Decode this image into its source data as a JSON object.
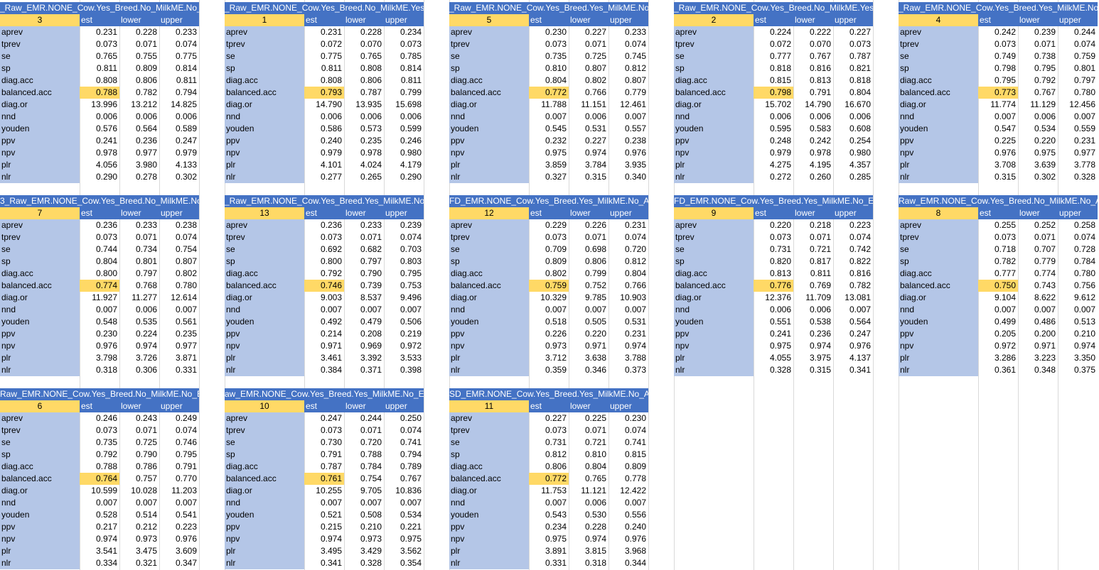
{
  "columns": [
    "est",
    "lower",
    "upper"
  ],
  "row_labels": [
    "aprev",
    "tprev",
    "se",
    "sp",
    "diag.acc",
    "balanced.acc",
    "diag.or",
    "nnd",
    "youden",
    "ppv",
    "npv",
    "plr",
    "nlr"
  ],
  "blocks": [
    {
      "title": "_Raw_EMR.NONE_Cow.Yes_Breed.No_MilkME.No_All",
      "num": "3",
      "rows": [
        [
          "0.231",
          "0.228",
          "0.233"
        ],
        [
          "0.073",
          "0.071",
          "0.074"
        ],
        [
          "0.765",
          "0.755",
          "0.775"
        ],
        [
          "0.811",
          "0.809",
          "0.814"
        ],
        [
          "0.808",
          "0.806",
          "0.811"
        ],
        [
          "0.788",
          "0.782",
          "0.794"
        ],
        [
          "13.996",
          "13.212",
          "14.825"
        ],
        [
          "0.006",
          "0.006",
          "0.006"
        ],
        [
          "0.576",
          "0.564",
          "0.589"
        ],
        [
          "0.241",
          "0.236",
          "0.247"
        ],
        [
          "0.978",
          "0.977",
          "0.979"
        ],
        [
          "4.056",
          "3.980",
          "4.133"
        ],
        [
          "0.290",
          "0.278",
          "0.302"
        ]
      ]
    },
    {
      "title": "_Raw_EMR.NONE_Cow.Yes_Breed.No_MilkME.Yes_A",
      "num": "1",
      "rows": [
        [
          "0.231",
          "0.228",
          "0.234"
        ],
        [
          "0.072",
          "0.070",
          "0.073"
        ],
        [
          "0.775",
          "0.765",
          "0.785"
        ],
        [
          "0.811",
          "0.808",
          "0.814"
        ],
        [
          "0.808",
          "0.806",
          "0.811"
        ],
        [
          "0.793",
          "0.787",
          "0.799"
        ],
        [
          "14.790",
          "13.935",
          "15.698"
        ],
        [
          "0.006",
          "0.006",
          "0.006"
        ],
        [
          "0.586",
          "0.573",
          "0.599"
        ],
        [
          "0.240",
          "0.235",
          "0.246"
        ],
        [
          "0.979",
          "0.978",
          "0.980"
        ],
        [
          "4.101",
          "4.024",
          "4.179"
        ],
        [
          "0.277",
          "0.265",
          "0.290"
        ]
      ]
    },
    {
      "title": "_Raw_EMR.NONE_Cow.Yes_Breed.Yes_MilkME.No_A",
      "num": "5",
      "rows": [
        [
          "0.230",
          "0.227",
          "0.233"
        ],
        [
          "0.073",
          "0.071",
          "0.074"
        ],
        [
          "0.735",
          "0.725",
          "0.745"
        ],
        [
          "0.810",
          "0.807",
          "0.812"
        ],
        [
          "0.804",
          "0.802",
          "0.807"
        ],
        [
          "0.772",
          "0.766",
          "0.779"
        ],
        [
          "11.788",
          "11.151",
          "12.461"
        ],
        [
          "0.007",
          "0.006",
          "0.007"
        ],
        [
          "0.545",
          "0.531",
          "0.557"
        ],
        [
          "0.232",
          "0.227",
          "0.238"
        ],
        [
          "0.975",
          "0.974",
          "0.976"
        ],
        [
          "3.859",
          "3.784",
          "3.935"
        ],
        [
          "0.327",
          "0.315",
          "0.340"
        ]
      ]
    },
    {
      "title": "_Raw_EMR.NONE_Cow.Yes_Breed.No_MilkME.Yes_A",
      "num": "2",
      "rows": [
        [
          "0.224",
          "0.222",
          "0.227"
        ],
        [
          "0.072",
          "0.070",
          "0.073"
        ],
        [
          "0.777",
          "0.767",
          "0.787"
        ],
        [
          "0.818",
          "0.816",
          "0.821"
        ],
        [
          "0.815",
          "0.813",
          "0.818"
        ],
        [
          "0.798",
          "0.791",
          "0.804"
        ],
        [
          "15.702",
          "14.790",
          "16.670"
        ],
        [
          "0.006",
          "0.006",
          "0.006"
        ],
        [
          "0.595",
          "0.583",
          "0.608"
        ],
        [
          "0.248",
          "0.242",
          "0.254"
        ],
        [
          "0.979",
          "0.978",
          "0.980"
        ],
        [
          "4.275",
          "4.195",
          "4.357"
        ],
        [
          "0.272",
          "0.260",
          "0.285"
        ]
      ]
    },
    {
      "title": "_Raw_EMR.NONE_Cow.Yes_Breed.Yes_MilkME.No_A",
      "num": "4",
      "rows": [
        [
          "0.242",
          "0.239",
          "0.244"
        ],
        [
          "0.073",
          "0.071",
          "0.074"
        ],
        [
          "0.749",
          "0.738",
          "0.759"
        ],
        [
          "0.798",
          "0.795",
          "0.801"
        ],
        [
          "0.795",
          "0.792",
          "0.797"
        ],
        [
          "0.773",
          "0.767",
          "0.780"
        ],
        [
          "11.774",
          "11.129",
          "12.456"
        ],
        [
          "0.007",
          "0.006",
          "0.007"
        ],
        [
          "0.547",
          "0.534",
          "0.559"
        ],
        [
          "0.225",
          "0.220",
          "0.231"
        ],
        [
          "0.976",
          "0.975",
          "0.977"
        ],
        [
          "3.708",
          "3.639",
          "3.778"
        ],
        [
          "0.315",
          "0.302",
          "0.328"
        ]
      ]
    },
    {
      "title": "3_Raw_EMR.NONE_Cow.Yes_Breed.No_MilkME.No_A",
      "num": "7",
      "rows": [
        [
          "0.236",
          "0.233",
          "0.238"
        ],
        [
          "0.073",
          "0.071",
          "0.074"
        ],
        [
          "0.744",
          "0.734",
          "0.754"
        ],
        [
          "0.804",
          "0.801",
          "0.807"
        ],
        [
          "0.800",
          "0.797",
          "0.802"
        ],
        [
          "0.774",
          "0.768",
          "0.780"
        ],
        [
          "11.927",
          "11.277",
          "12.614"
        ],
        [
          "0.007",
          "0.006",
          "0.007"
        ],
        [
          "0.548",
          "0.535",
          "0.561"
        ],
        [
          "0.230",
          "0.224",
          "0.235"
        ],
        [
          "0.976",
          "0.974",
          "0.977"
        ],
        [
          "3.798",
          "3.726",
          "3.871"
        ],
        [
          "0.318",
          "0.306",
          "0.331"
        ]
      ]
    },
    {
      "title": "_Raw_EMR.NONE_Cow.Yes_Breed.Yes_MilkME.No_A",
      "num": "13",
      "rows": [
        [
          "0.236",
          "0.233",
          "0.239"
        ],
        [
          "0.073",
          "0.071",
          "0.074"
        ],
        [
          "0.692",
          "0.682",
          "0.703"
        ],
        [
          "0.800",
          "0.797",
          "0.803"
        ],
        [
          "0.792",
          "0.790",
          "0.795"
        ],
        [
          "0.746",
          "0.739",
          "0.753"
        ],
        [
          "9.003",
          "8.537",
          "9.496"
        ],
        [
          "0.007",
          "0.007",
          "0.007"
        ],
        [
          "0.492",
          "0.479",
          "0.506"
        ],
        [
          "0.214",
          "0.208",
          "0.219"
        ],
        [
          "0.971",
          "0.969",
          "0.972"
        ],
        [
          "3.461",
          "3.392",
          "3.533"
        ],
        [
          "0.384",
          "0.371",
          "0.398"
        ]
      ]
    },
    {
      "title": "FD_EMR.NONE_Cow.Yes_Breed.Yes_MilkME.No_AllY",
      "num": "12",
      "rows": [
        [
          "0.229",
          "0.226",
          "0.231"
        ],
        [
          "0.073",
          "0.071",
          "0.074"
        ],
        [
          "0.709",
          "0.698",
          "0.720"
        ],
        [
          "0.809",
          "0.806",
          "0.812"
        ],
        [
          "0.802",
          "0.799",
          "0.804"
        ],
        [
          "0.759",
          "0.752",
          "0.766"
        ],
        [
          "10.329",
          "9.785",
          "10.903"
        ],
        [
          "0.007",
          "0.007",
          "0.007"
        ],
        [
          "0.518",
          "0.505",
          "0.531"
        ],
        [
          "0.226",
          "0.220",
          "0.231"
        ],
        [
          "0.973",
          "0.971",
          "0.974"
        ],
        [
          "3.712",
          "3.638",
          "3.788"
        ],
        [
          "0.359",
          "0.346",
          "0.373"
        ]
      ]
    },
    {
      "title": "FD_EMR.NONE_Cow.Yes_Breed.Yes_MilkME.No_EMR",
      "num": "9",
      "rows": [
        [
          "0.220",
          "0.218",
          "0.223"
        ],
        [
          "0.073",
          "0.071",
          "0.074"
        ],
        [
          "0.731",
          "0.721",
          "0.742"
        ],
        [
          "0.820",
          "0.817",
          "0.822"
        ],
        [
          "0.813",
          "0.811",
          "0.816"
        ],
        [
          "0.776",
          "0.769",
          "0.782"
        ],
        [
          "12.376",
          "11.709",
          "13.081"
        ],
        [
          "0.006",
          "0.006",
          "0.007"
        ],
        [
          "0.551",
          "0.538",
          "0.564"
        ],
        [
          "0.241",
          "0.236",
          "0.247"
        ],
        [
          "0.975",
          "0.974",
          "0.976"
        ],
        [
          "4.055",
          "3.975",
          "4.137"
        ],
        [
          "0.328",
          "0.315",
          "0.341"
        ]
      ]
    },
    {
      "title": "Raw_EMR.NONE_Cow.Yes_Breed.No_MilkME.No_All",
      "num": "8",
      "rows": [
        [
          "0.255",
          "0.252",
          "0.258"
        ],
        [
          "0.073",
          "0.071",
          "0.074"
        ],
        [
          "0.718",
          "0.707",
          "0.728"
        ],
        [
          "0.782",
          "0.779",
          "0.784"
        ],
        [
          "0.777",
          "0.774",
          "0.780"
        ],
        [
          "0.750",
          "0.743",
          "0.756"
        ],
        [
          "9.104",
          "8.622",
          "9.612"
        ],
        [
          "0.007",
          "0.007",
          "0.007"
        ],
        [
          "0.499",
          "0.486",
          "0.513"
        ],
        [
          "0.205",
          "0.200",
          "0.210"
        ],
        [
          "0.972",
          "0.971",
          "0.974"
        ],
        [
          "3.286",
          "3.223",
          "3.350"
        ],
        [
          "0.361",
          "0.348",
          "0.375"
        ]
      ]
    },
    {
      "title": "Raw_EMR.NONE_Cow.Yes_Breed.No_MilkME.No_EMI",
      "num": "6",
      "rows": [
        [
          "0.246",
          "0.243",
          "0.249"
        ],
        [
          "0.073",
          "0.071",
          "0.074"
        ],
        [
          "0.735",
          "0.725",
          "0.746"
        ],
        [
          "0.792",
          "0.790",
          "0.795"
        ],
        [
          "0.788",
          "0.786",
          "0.791"
        ],
        [
          "0.764",
          "0.757",
          "0.770"
        ],
        [
          "10.599",
          "10.028",
          "11.203"
        ],
        [
          "0.007",
          "0.007",
          "0.007"
        ],
        [
          "0.528",
          "0.514",
          "0.541"
        ],
        [
          "0.217",
          "0.212",
          "0.223"
        ],
        [
          "0.974",
          "0.973",
          "0.976"
        ],
        [
          "3.541",
          "3.475",
          "3.609"
        ],
        [
          "0.334",
          "0.321",
          "0.347"
        ]
      ]
    },
    {
      "title": "aw_EMR.NONE_Cow.Yes_Breed.Yes_MilkME.No_EM",
      "num": "10",
      "rows": [
        [
          "0.247",
          "0.244",
          "0.250"
        ],
        [
          "0.073",
          "0.071",
          "0.074"
        ],
        [
          "0.730",
          "0.720",
          "0.741"
        ],
        [
          "0.791",
          "0.788",
          "0.794"
        ],
        [
          "0.787",
          "0.784",
          "0.789"
        ],
        [
          "0.761",
          "0.754",
          "0.767"
        ],
        [
          "10.255",
          "9.705",
          "10.836"
        ],
        [
          "0.007",
          "0.007",
          "0.007"
        ],
        [
          "0.521",
          "0.508",
          "0.534"
        ],
        [
          "0.215",
          "0.210",
          "0.221"
        ],
        [
          "0.974",
          "0.973",
          "0.975"
        ],
        [
          "3.495",
          "3.429",
          "3.562"
        ],
        [
          "0.341",
          "0.328",
          "0.354"
        ]
      ]
    },
    {
      "title": "SD_EMR.NONE_Cow.Yes_Breed.Yes_MilkME.No_AllY",
      "num": "11",
      "rows": [
        [
          "0.227",
          "0.225",
          "0.230"
        ],
        [
          "0.073",
          "0.071",
          "0.074"
        ],
        [
          "0.731",
          "0.721",
          "0.741"
        ],
        [
          "0.812",
          "0.810",
          "0.815"
        ],
        [
          "0.806",
          "0.804",
          "0.809"
        ],
        [
          "0.772",
          "0.765",
          "0.778"
        ],
        [
          "11.753",
          "11.121",
          "12.422"
        ],
        [
          "0.007",
          "0.006",
          "0.007"
        ],
        [
          "0.543",
          "0.530",
          "0.556"
        ],
        [
          "0.234",
          "0.228",
          "0.240"
        ],
        [
          "0.975",
          "0.974",
          "0.976"
        ],
        [
          "3.891",
          "3.815",
          "3.968"
        ],
        [
          "0.331",
          "0.318",
          "0.344"
        ]
      ]
    }
  ],
  "colors": {
    "header_blue": "#4472c4",
    "label_blue": "#b4c6e7",
    "highlight_yellow": "#ffd966"
  }
}
